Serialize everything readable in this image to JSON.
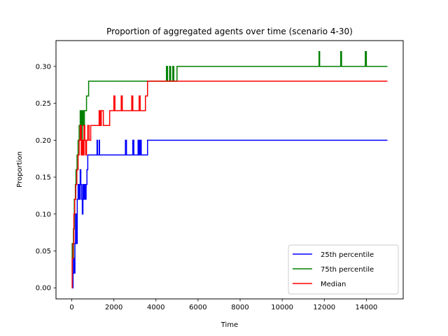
{
  "chart_data": {
    "type": "line",
    "title": "Proportion of aggregated agents over time (scenario 4-30)",
    "xlabel": "Time",
    "ylabel": "Proportion",
    "xlim": [
      -750,
      15750
    ],
    "ylim": [
      -0.015,
      0.335
    ],
    "xticks": [
      0,
      2000,
      4000,
      6000,
      8000,
      10000,
      12000,
      14000
    ],
    "yticks": [
      0.0,
      0.05,
      0.1,
      0.15,
      0.2,
      0.25,
      0.3
    ],
    "ytick_labels": [
      "0.00",
      "0.05",
      "0.10",
      "0.15",
      "0.20",
      "0.25",
      "0.30"
    ],
    "grid": false,
    "legend_position": "lower-right",
    "series": [
      {
        "name": "25th percentile",
        "color": "#0000ff",
        "x": [
          0,
          30,
          60,
          60,
          80,
          80,
          100,
          100,
          150,
          150,
          180,
          180,
          220,
          220,
          260,
          260,
          300,
          300,
          350,
          350,
          400,
          400,
          430,
          430,
          470,
          470,
          500,
          500,
          530,
          530,
          560,
          560,
          600,
          600,
          640,
          640,
          680,
          680,
          720,
          720,
          760,
          760,
          850,
          850,
          1000,
          1000,
          1200,
          1200,
          1220,
          1220,
          1300,
          1300,
          1320,
          1320,
          2550,
          2550,
          2600,
          2600,
          2900,
          2900,
          2950,
          2950,
          3150,
          3150,
          3200,
          3200,
          3250,
          3250,
          3300,
          3300,
          3600,
          3600,
          15000
        ],
        "y": [
          0.0,
          0.0,
          0.0,
          0.02,
          0.02,
          0.04,
          0.04,
          0.02,
          0.02,
          0.06,
          0.06,
          0.1,
          0.1,
          0.06,
          0.06,
          0.12,
          0.12,
          0.14,
          0.14,
          0.12,
          0.12,
          0.16,
          0.16,
          0.14,
          0.14,
          0.12,
          0.12,
          0.1,
          0.1,
          0.14,
          0.14,
          0.12,
          0.12,
          0.14,
          0.14,
          0.12,
          0.12,
          0.14,
          0.14,
          0.16,
          0.16,
          0.18,
          0.18,
          0.18,
          0.18,
          0.18,
          0.18,
          0.2,
          0.2,
          0.18,
          0.18,
          0.2,
          0.2,
          0.18,
          0.18,
          0.2,
          0.2,
          0.18,
          0.18,
          0.2,
          0.2,
          0.18,
          0.18,
          0.2,
          0.2,
          0.18,
          0.18,
          0.2,
          0.2,
          0.18,
          0.18,
          0.2,
          0.2
        ]
      },
      {
        "name": "75th percentile",
        "color": "#008000",
        "x": [
          0,
          20,
          20,
          50,
          50,
          80,
          80,
          120,
          120,
          170,
          170,
          200,
          200,
          250,
          250,
          300,
          300,
          350,
          350,
          400,
          400,
          450,
          450,
          500,
          500,
          550,
          550,
          600,
          600,
          700,
          700,
          800,
          800,
          1000,
          1000,
          4500,
          4500,
          4550,
          4550,
          4650,
          4650,
          4700,
          4700,
          4800,
          4800,
          4850,
          4850,
          5000,
          5000,
          11750,
          11750,
          11780,
          11780,
          12780,
          12780,
          12820,
          12820,
          13950,
          13950,
          14000,
          14000,
          15000
        ],
        "y": [
          0.02,
          0.02,
          0.06,
          0.06,
          0.04,
          0.04,
          0.08,
          0.08,
          0.12,
          0.12,
          0.14,
          0.14,
          0.16,
          0.16,
          0.18,
          0.18,
          0.2,
          0.2,
          0.22,
          0.22,
          0.24,
          0.24,
          0.2,
          0.2,
          0.24,
          0.24,
          0.22,
          0.22,
          0.24,
          0.24,
          0.26,
          0.26,
          0.28,
          0.28,
          0.28,
          0.28,
          0.3,
          0.3,
          0.28,
          0.28,
          0.3,
          0.3,
          0.28,
          0.28,
          0.3,
          0.3,
          0.28,
          0.28,
          0.3,
          0.3,
          0.32,
          0.32,
          0.3,
          0.3,
          0.32,
          0.32,
          0.3,
          0.3,
          0.32,
          0.32,
          0.3,
          0.3
        ]
      },
      {
        "name": "Median",
        "color": "#ff0000",
        "x": [
          0,
          20,
          20,
          60,
          60,
          100,
          100,
          140,
          140,
          190,
          190,
          240,
          240,
          300,
          300,
          350,
          350,
          400,
          400,
          450,
          450,
          500,
          500,
          540,
          540,
          580,
          580,
          620,
          620,
          660,
          660,
          700,
          700,
          760,
          760,
          820,
          820,
          900,
          900,
          1000,
          1000,
          1100,
          1100,
          1300,
          1300,
          1350,
          1350,
          1400,
          1400,
          1500,
          1500,
          1800,
          1800,
          2000,
          2000,
          2050,
          2050,
          2350,
          2350,
          2400,
          2400,
          2850,
          2850,
          2900,
          2900,
          3200,
          3200,
          3250,
          3250,
          3500,
          3500,
          3600,
          3600,
          4000,
          4000,
          15000
        ],
        "y": [
          0.0,
          0.0,
          0.04,
          0.04,
          0.06,
          0.06,
          0.1,
          0.1,
          0.12,
          0.12,
          0.14,
          0.14,
          0.16,
          0.16,
          0.18,
          0.18,
          0.2,
          0.2,
          0.22,
          0.22,
          0.18,
          0.18,
          0.2,
          0.2,
          0.18,
          0.18,
          0.22,
          0.22,
          0.2,
          0.2,
          0.18,
          0.18,
          0.2,
          0.2,
          0.22,
          0.22,
          0.2,
          0.2,
          0.22,
          0.22,
          0.22,
          0.22,
          0.22,
          0.22,
          0.24,
          0.24,
          0.22,
          0.22,
          0.24,
          0.24,
          0.22,
          0.22,
          0.24,
          0.24,
          0.26,
          0.26,
          0.24,
          0.24,
          0.26,
          0.26,
          0.24,
          0.24,
          0.26,
          0.26,
          0.24,
          0.24,
          0.26,
          0.26,
          0.24,
          0.24,
          0.26,
          0.26,
          0.28,
          0.28,
          0.28,
          0.28
        ]
      }
    ]
  }
}
